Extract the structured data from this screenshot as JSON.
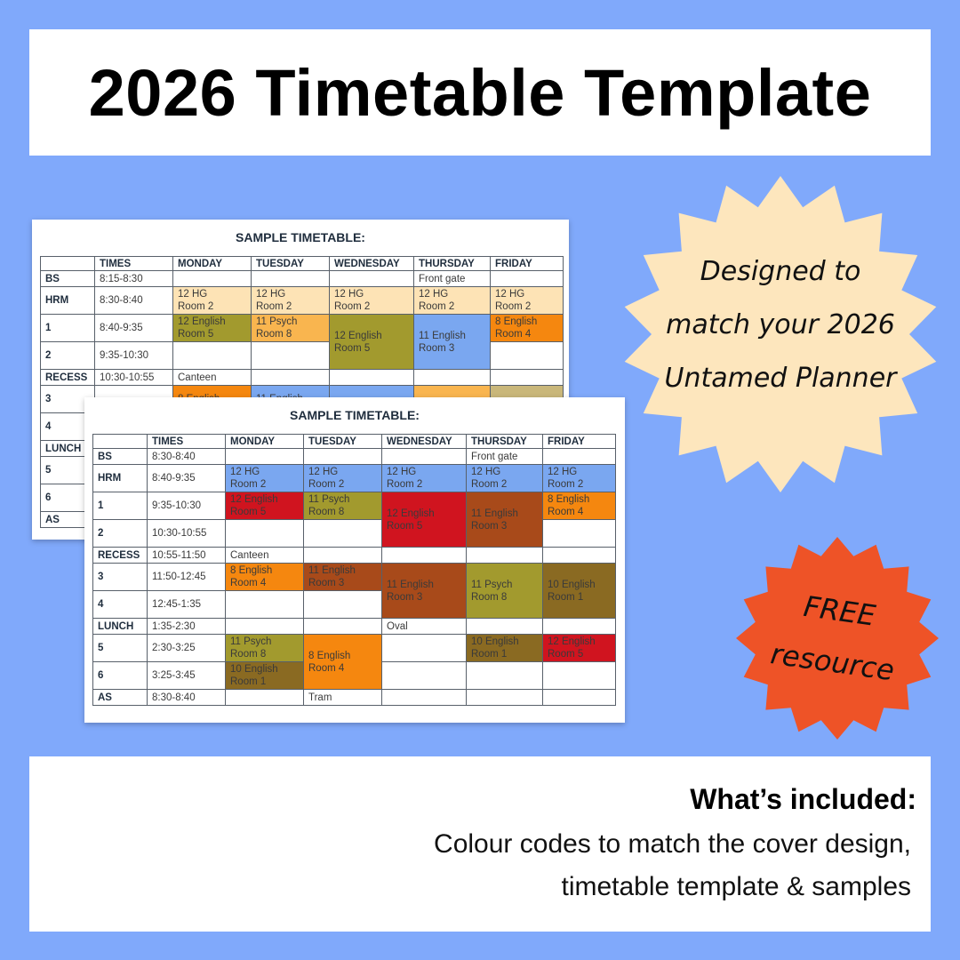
{
  "title": "2026 Timetable Template",
  "badge_designed": {
    "lines": [
      "Designed to",
      "match your 2026",
      "Untamed Planner"
    ],
    "color": "#fde6bd"
  },
  "badge_free": {
    "lines": [
      "FREE",
      "resource"
    ],
    "color": "#ee5327"
  },
  "included": {
    "heading": "What’s included:",
    "lines": [
      "Colour codes to match the cover design,",
      "timetable template & samples"
    ]
  },
  "back_timetable": {
    "title": "SAMPLE TIMETABLE:",
    "headers": [
      null,
      "TIMES",
      "MONDAY",
      "TUESDAY",
      "WEDNESDAY",
      "THURSDAY",
      "FRIDAY"
    ],
    "rows": [
      {
        "label": "BS",
        "time": "8:15-8:30",
        "cells": [
          null,
          null,
          null,
          {
            "lines": [
              "Front gate"
            ]
          },
          null
        ]
      },
      {
        "label": "HRM",
        "time": "8:30-8:40",
        "cells": [
          {
            "lines": [
              "12 HG",
              "Room 2"
            ],
            "color": "#fde3b5"
          },
          {
            "lines": [
              "12 HG",
              "Room 2"
            ],
            "color": "#fde3b5"
          },
          {
            "lines": [
              "12 HG",
              "Room 2"
            ],
            "color": "#fde3b5"
          },
          {
            "lines": [
              "12 HG",
              "Room 2"
            ],
            "color": "#fde3b5"
          },
          {
            "lines": [
              "12 HG",
              "Room 2"
            ],
            "color": "#fde3b5"
          }
        ]
      },
      {
        "label": "1",
        "time": "8:40-9:35",
        "cells": [
          {
            "lines": [
              "12 English",
              "Room 5"
            ],
            "color": "#a29a2e"
          },
          {
            "lines": [
              "11 Psych",
              "Room 8"
            ],
            "color": "#f9b54f"
          },
          {
            "lines": [
              "12 English",
              "Room 5"
            ],
            "color": "#a29a2e",
            "rowspan": 2
          },
          {
            "lines": [
              "11 English",
              "Room 3"
            ],
            "color": "#7aa7f0",
            "rowspan": 2
          },
          {
            "lines": [
              "8 English",
              "Room 4"
            ],
            "color": "#f5870f"
          }
        ]
      },
      {
        "label": "2",
        "time": "9:35-10:30",
        "cells": [
          null,
          null,
          null
        ]
      },
      {
        "label": "RECESS",
        "time": "10:30-10:55",
        "cells": [
          {
            "lines": [
              "Canteen"
            ]
          },
          null,
          null,
          null,
          null
        ]
      },
      {
        "label": "3",
        "time": null,
        "cells": [
          {
            "lines": [
              "8 English"
            ],
            "color": "#f5870f"
          },
          {
            "lines": [
              "11 English"
            ],
            "color": "#7aa7f0"
          },
          {
            "color": "#7aa7f0"
          },
          {
            "color": "#f9b54f"
          },
          {
            "color": "#c9b77a"
          }
        ]
      },
      {
        "label": "4",
        "time": null,
        "cells": [
          null,
          null,
          null,
          null,
          null
        ]
      },
      {
        "label": "LUNCH",
        "time": null,
        "cells": [
          null,
          null,
          null,
          null,
          null
        ]
      },
      {
        "label": "5",
        "time": null,
        "cells": [
          null,
          null,
          null,
          null,
          null
        ]
      },
      {
        "label": "6",
        "time": null,
        "cells": [
          null,
          null,
          null,
          null,
          null
        ]
      },
      {
        "label": "AS",
        "time": null,
        "cells": [
          null,
          null,
          null,
          null,
          null
        ]
      }
    ]
  },
  "front_timetable": {
    "title": "SAMPLE TIMETABLE:",
    "headers": [
      null,
      "TIMES",
      "MONDAY",
      "TUESDAY",
      "WEDNESDAY",
      "THURSDAY",
      "FRIDAY"
    ],
    "rows": [
      {
        "label": "BS",
        "time": "8:30-8:40",
        "cells": [
          null,
          null,
          null,
          {
            "lines": [
              "Front gate"
            ]
          },
          null
        ]
      },
      {
        "label": "HRM",
        "time": "8:40-9:35",
        "cells": [
          {
            "lines": [
              "12 HG",
              "Room 2"
            ],
            "color": "#7aa7f0"
          },
          {
            "lines": [
              "12 HG",
              "Room 2"
            ],
            "color": "#7aa7f0"
          },
          {
            "lines": [
              "12 HG",
              "Room 2"
            ],
            "color": "#7aa7f0"
          },
          {
            "lines": [
              "12 HG",
              "Room 2"
            ],
            "color": "#7aa7f0"
          },
          {
            "lines": [
              "12 HG",
              "Room 2"
            ],
            "color": "#7aa7f0"
          }
        ]
      },
      {
        "label": "1",
        "time": "9:35-10:30",
        "cells": [
          {
            "lines": [
              "12 English",
              "Room 5"
            ],
            "color": "#d0141f"
          },
          {
            "lines": [
              "11 Psych",
              "Room 8"
            ],
            "color": "#a29a2e"
          },
          {
            "lines": [
              "12 English",
              "Room 5"
            ],
            "color": "#d0141f",
            "rowspan": 2
          },
          {
            "lines": [
              "11 English",
              "Room 3"
            ],
            "color": "#a84a1a",
            "rowspan": 2
          },
          {
            "lines": [
              "8 English",
              "Room 4"
            ],
            "color": "#f5870f"
          }
        ]
      },
      {
        "label": "2",
        "time": "10:30-10:55",
        "cells": [
          null,
          null,
          null
        ]
      },
      {
        "label": "RECESS",
        "time": "10:55-11:50",
        "cells": [
          {
            "lines": [
              "Canteen"
            ]
          },
          null,
          null,
          null,
          null
        ]
      },
      {
        "label": "3",
        "time": "11:50-12:45",
        "cells": [
          {
            "lines": [
              "8 English",
              "Room 4"
            ],
            "color": "#f5870f"
          },
          {
            "lines": [
              "11 English",
              "Room 3"
            ],
            "color": "#a84a1a"
          },
          {
            "lines": [
              "11 English",
              "Room 3"
            ],
            "color": "#a84a1a",
            "rowspan": 2
          },
          {
            "lines": [
              "11 Psych",
              "Room 8"
            ],
            "color": "#a29a2e",
            "rowspan": 2
          },
          {
            "lines": [
              "10 English",
              "Room 1"
            ],
            "color": "#8a6a22",
            "rowspan": 2
          }
        ]
      },
      {
        "label": "4",
        "time": "12:45-1:35",
        "cells": [
          null,
          null
        ]
      },
      {
        "label": "LUNCH",
        "time": "1:35-2:30",
        "cells": [
          null,
          null,
          {
            "lines": [
              "Oval"
            ]
          },
          null,
          null
        ]
      },
      {
        "label": "5",
        "time": "2:30-3:25",
        "cells": [
          {
            "lines": [
              "11 Psych",
              "Room 8"
            ],
            "color": "#a29a2e"
          },
          {
            "lines": [
              "8 English",
              "Room 4"
            ],
            "color": "#f5870f",
            "rowspan": 2
          },
          null,
          {
            "lines": [
              "10 English",
              "Room 1"
            ],
            "color": "#8a6a22"
          },
          {
            "lines": [
              "12 English",
              "Room 5"
            ],
            "color": "#d0141f"
          }
        ]
      },
      {
        "label": "6",
        "time": "3:25-3:45",
        "cells": [
          {
            "lines": [
              "10 English",
              "Room 1"
            ],
            "color": "#8a6a22"
          },
          null,
          null,
          null
        ]
      },
      {
        "label": "AS",
        "time": "8:30-8:40",
        "cells": [
          null,
          {
            "lines": [
              "Tram"
            ]
          },
          null,
          null,
          null
        ]
      }
    ]
  }
}
